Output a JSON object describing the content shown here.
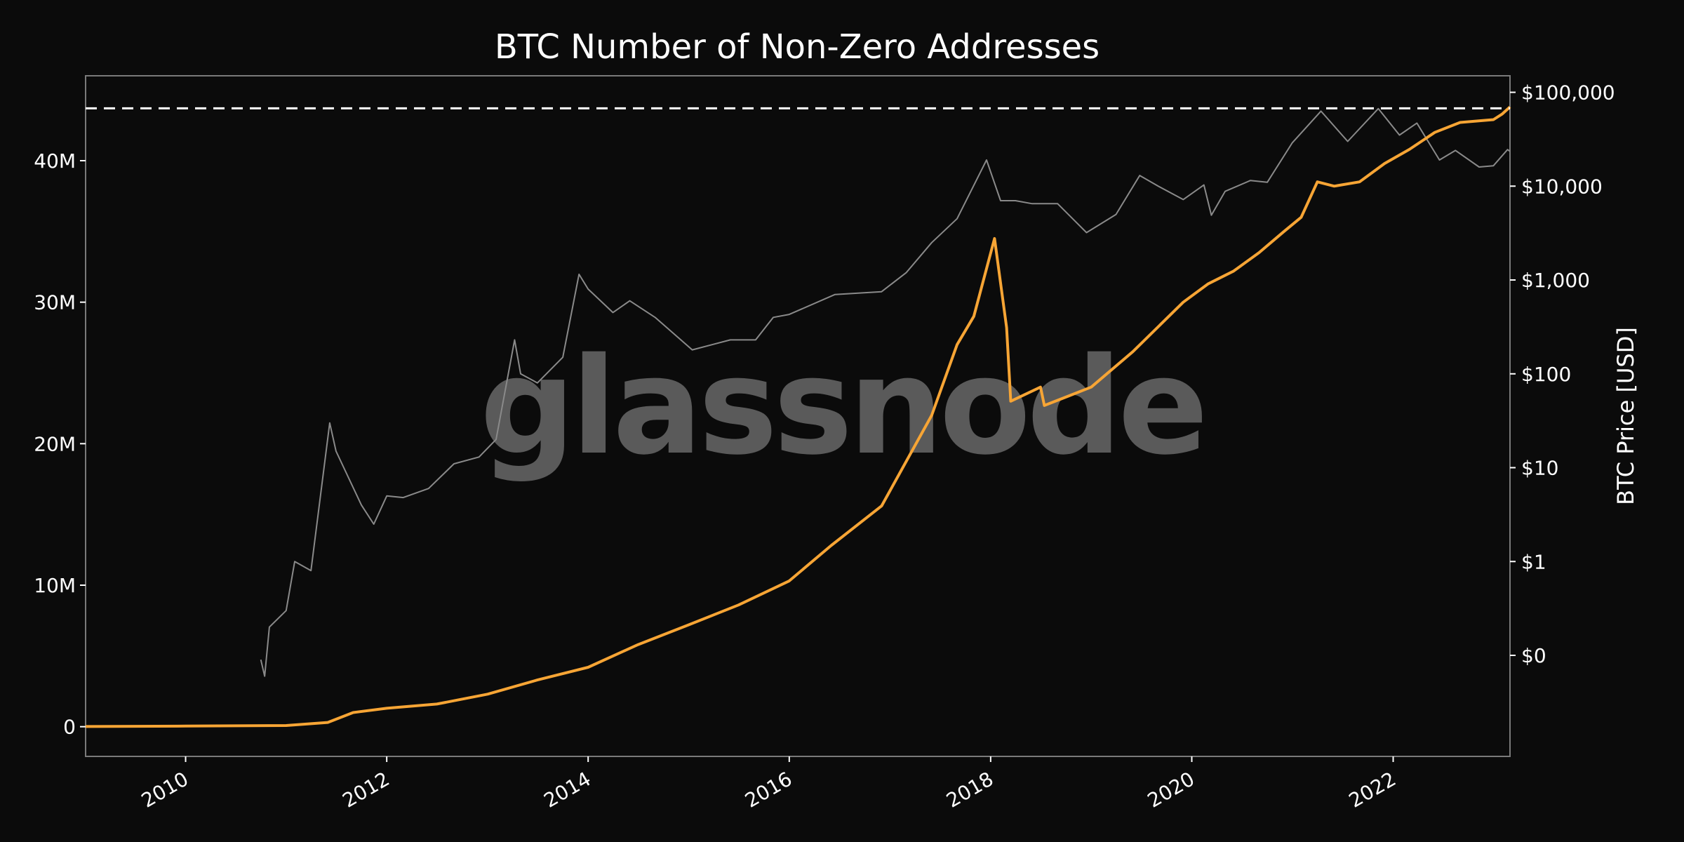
{
  "chart_data": {
    "type": "line",
    "title": "BTC Number of Non-Zero Addresses",
    "watermark": "glassnode",
    "xlabel": "",
    "ylabel_left": "",
    "ylabel_right": "BTC Price [USD]",
    "grid": false,
    "x_ticks": [
      "2010",
      "2012",
      "2014",
      "2016",
      "2018",
      "2020",
      "2022"
    ],
    "xlim": [
      "2009-01-03",
      "2023-03-01"
    ],
    "left_axis": {
      "ticks": [
        {
          "value": 0,
          "label": "0"
        },
        {
          "value": 10000000,
          "label": "10M"
        },
        {
          "value": 20000000,
          "label": "20M"
        },
        {
          "value": 30000000,
          "label": "30M"
        },
        {
          "value": 40000000,
          "label": "40M"
        }
      ],
      "ylim": [
        -2100000,
        46000000
      ]
    },
    "right_axis": {
      "scale": "log",
      "ticks": [
        {
          "value": 0.1,
          "label": "$0"
        },
        {
          "value": 1,
          "label": "$1"
        },
        {
          "value": 10,
          "label": "$10"
        },
        {
          "value": 100,
          "label": "$100"
        },
        {
          "value": 1000,
          "label": "$1,000"
        },
        {
          "value": 10000,
          "label": "$10,000"
        },
        {
          "value": 100000,
          "label": "$100,000"
        }
      ],
      "ylim": [
        0.00838,
        150000
      ]
    },
    "reference_line": {
      "axis": "left",
      "value": 43700000,
      "style": "dashed",
      "color": "#ffffff"
    },
    "series": [
      {
        "axis": "right",
        "color": "#8a8a8a",
        "points": [
          [
            "2010-10-01",
            0.09
          ],
          [
            "2010-10-15",
            0.06
          ],
          [
            "2010-11-01",
            0.2
          ],
          [
            "2011-01-01",
            0.3
          ],
          [
            "2011-02-01",
            1.0
          ],
          [
            "2011-04-01",
            0.8
          ],
          [
            "2011-06-08",
            30
          ],
          [
            "2011-07-01",
            15
          ],
          [
            "2011-10-01",
            4
          ],
          [
            "2011-11-15",
            2.5
          ],
          [
            "2012-01-01",
            5
          ],
          [
            "2012-03-01",
            4.8
          ],
          [
            "2012-06-01",
            6
          ],
          [
            "2012-09-01",
            11
          ],
          [
            "2012-12-01",
            13
          ],
          [
            "2013-02-01",
            20
          ],
          [
            "2013-04-09",
            230
          ],
          [
            "2013-05-01",
            100
          ],
          [
            "2013-07-01",
            80
          ],
          [
            "2013-10-01",
            150
          ],
          [
            "2013-11-29",
            1150
          ],
          [
            "2014-01-01",
            800
          ],
          [
            "2014-04-01",
            450
          ],
          [
            "2014-06-01",
            600
          ],
          [
            "2014-09-01",
            400
          ],
          [
            "2015-01-14",
            180
          ],
          [
            "2015-06-01",
            230
          ],
          [
            "2015-09-01",
            230
          ],
          [
            "2015-11-04",
            400
          ],
          [
            "2016-01-01",
            430
          ],
          [
            "2016-06-15",
            700
          ],
          [
            "2016-12-01",
            750
          ],
          [
            "2017-03-01",
            1200
          ],
          [
            "2017-06-01",
            2500
          ],
          [
            "2017-09-01",
            4500
          ],
          [
            "2017-12-17",
            19000
          ],
          [
            "2018-02-06",
            7000
          ],
          [
            "2018-04-01",
            7000
          ],
          [
            "2018-06-01",
            6500
          ],
          [
            "2018-09-01",
            6500
          ],
          [
            "2018-12-15",
            3200
          ],
          [
            "2019-04-01",
            5000
          ],
          [
            "2019-06-26",
            13000
          ],
          [
            "2019-09-01",
            10000
          ],
          [
            "2019-12-01",
            7200
          ],
          [
            "2020-02-14",
            10300
          ],
          [
            "2020-03-12",
            4900
          ],
          [
            "2020-05-01",
            8800
          ],
          [
            "2020-08-01",
            11500
          ],
          [
            "2020-10-01",
            11000
          ],
          [
            "2020-12-31",
            29000
          ],
          [
            "2021-04-14",
            63000
          ],
          [
            "2021-07-20",
            30000
          ],
          [
            "2021-11-08",
            67000
          ],
          [
            "2022-01-24",
            35000
          ],
          [
            "2022-03-28",
            47000
          ],
          [
            "2022-06-18",
            19000
          ],
          [
            "2022-08-15",
            24000
          ],
          [
            "2022-11-09",
            16000
          ],
          [
            "2022-12-31",
            16500
          ],
          [
            "2023-02-20",
            24500
          ],
          [
            "2023-03-01",
            23500
          ]
        ]
      },
      {
        "axis": "left",
        "color": "#f7a535",
        "points": [
          [
            "2009-01-03",
            10000
          ],
          [
            "2010-01-01",
            40000
          ],
          [
            "2011-01-01",
            80000
          ],
          [
            "2011-06-01",
            300000
          ],
          [
            "2011-09-01",
            1000000
          ],
          [
            "2012-01-01",
            1300000
          ],
          [
            "2012-07-01",
            1600000
          ],
          [
            "2013-01-01",
            2300000
          ],
          [
            "2013-07-01",
            3300000
          ],
          [
            "2014-01-01",
            4200000
          ],
          [
            "2014-07-01",
            5800000
          ],
          [
            "2015-01-01",
            7200000
          ],
          [
            "2015-07-01",
            8600000
          ],
          [
            "2016-01-01",
            10300000
          ],
          [
            "2016-06-01",
            12800000
          ],
          [
            "2016-12-01",
            15600000
          ],
          [
            "2017-06-01",
            22000000
          ],
          [
            "2017-09-01",
            27000000
          ],
          [
            "2017-11-01",
            29000000
          ],
          [
            "2018-01-15",
            34500000
          ],
          [
            "2018-02-28",
            28200000
          ],
          [
            "2018-03-15",
            23000000
          ],
          [
            "2018-07-01",
            24000000
          ],
          [
            "2018-07-15",
            22700000
          ],
          [
            "2019-01-01",
            24000000
          ],
          [
            "2019-06-01",
            26500000
          ],
          [
            "2019-12-01",
            30000000
          ],
          [
            "2020-03-01",
            31300000
          ],
          [
            "2020-06-01",
            32200000
          ],
          [
            "2020-09-01",
            33500000
          ],
          [
            "2020-12-01",
            35000000
          ],
          [
            "2021-02-01",
            36000000
          ],
          [
            "2021-04-01",
            38500000
          ],
          [
            "2021-06-01",
            38200000
          ],
          [
            "2021-09-01",
            38500000
          ],
          [
            "2021-12-01",
            39800000
          ],
          [
            "2022-03-01",
            40800000
          ],
          [
            "2022-06-01",
            42000000
          ],
          [
            "2022-09-01",
            42700000
          ],
          [
            "2022-12-31",
            42900000
          ],
          [
            "2023-02-01",
            43300000
          ],
          [
            "2023-03-01",
            43800000
          ]
        ]
      }
    ]
  }
}
